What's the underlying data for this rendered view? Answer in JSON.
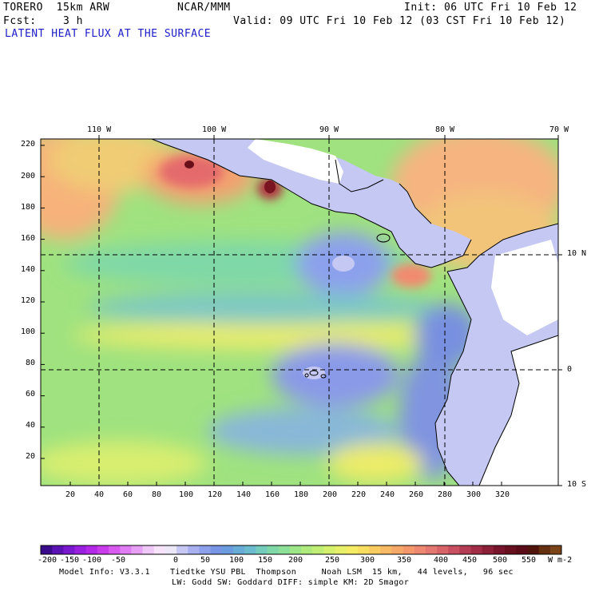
{
  "header": {
    "model": "TORERO  15km ARW",
    "center": "NCAR/MMM",
    "init": "Init: 06 UTC Fri 10 Feb 12",
    "fcst": "Fcst:    3 h",
    "valid": "Valid: 09 UTC Fri 10 Feb 12 (03 CST Fri 10 Feb 12)",
    "field": "LATENT HEAT FLUX AT THE SURFACE"
  },
  "map": {
    "lon_labels": [
      "110 W",
      "100 W",
      "90 W",
      "80 W",
      "70 W"
    ],
    "lat_labels": [
      "10 N",
      "0",
      "10 S"
    ],
    "y_ticks": [
      "220",
      "200",
      "180",
      "160",
      "140",
      "120",
      "100",
      "80",
      "60",
      "40",
      "20"
    ],
    "x_ticks": [
      "20",
      "40",
      "60",
      "80",
      "100",
      "120",
      "140",
      "160",
      "180",
      "200",
      "220",
      "240",
      "260",
      "280",
      "300",
      "320"
    ]
  },
  "colorbar": {
    "labels": [
      "-200",
      "-150",
      "-100",
      "-50",
      "0",
      "50",
      "100",
      "150",
      "200",
      "250",
      "300",
      "350",
      "400",
      "450",
      "500",
      "550"
    ],
    "units": "W m-2",
    "colors": [
      "#3a0c8c",
      "#5a12b4",
      "#7a18d0",
      "#9a20e0",
      "#b428e8",
      "#c83cec",
      "#d85af0",
      "#e07cf4",
      "#e8a0f6",
      "#f0c8f8",
      "#f8e4fa",
      "#ece8f8",
      "#c8c8f4",
      "#a8b0f0",
      "#8ca0ec",
      "#7894e4",
      "#6c9ce0",
      "#68acd8",
      "#6cbcd0",
      "#74ccbc",
      "#80d8a8",
      "#8ce098",
      "#9ce688",
      "#aeea7c",
      "#c0ee74",
      "#d4f06c",
      "#e6f068",
      "#f4ec64",
      "#f8de60",
      "#f8cc60",
      "#f8ba64",
      "#f6a868",
      "#f4986c",
      "#ee8870",
      "#e47870",
      "#d8646a",
      "#c85060",
      "#b43c54",
      "#a02c46",
      "#8c2038",
      "#78142c",
      "#681020",
      "#5c0c18",
      "#50140c",
      "#643010",
      "#7a4418"
    ]
  },
  "footer": {
    "line1": "Model Info: V3.3.1    Tiedtke YSU PBL  Thompson     Noah LSM  15 km,   44 levels,   96 sec",
    "line2": "LW: Godd SW: Goddard DIFF: simple KM: 2D Smagor"
  }
}
